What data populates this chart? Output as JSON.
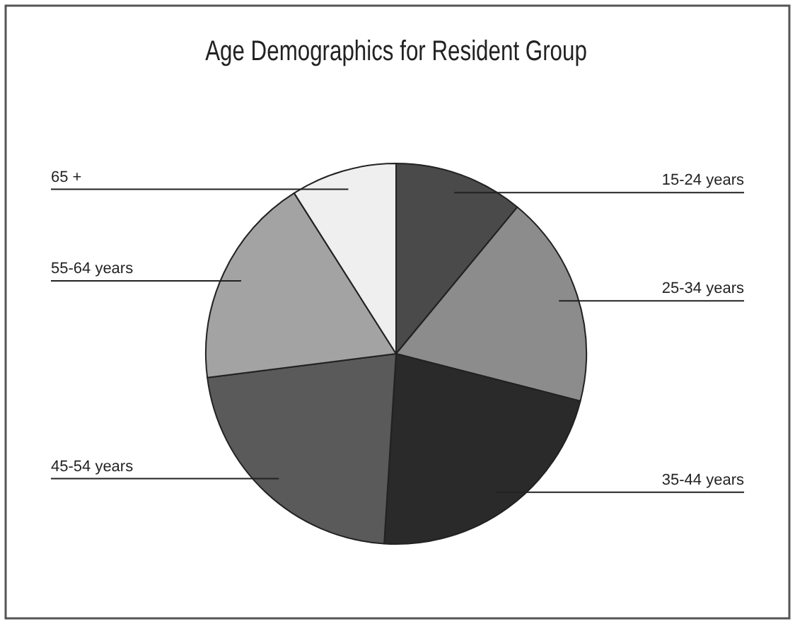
{
  "chart_data": {
    "type": "pie",
    "title": "Age Demographics for Resident Group",
    "categories": [
      "15-24 years",
      "25-34 years",
      "35-44 years",
      "45-54 years",
      "55-64 years",
      "65 +"
    ],
    "values": [
      11,
      18,
      22,
      22,
      18,
      9
    ],
    "colors": [
      "#4a4a4a",
      "#8c8c8c",
      "#2a2a2a",
      "#5a5a5a",
      "#a3a3a3",
      "#efefef"
    ]
  }
}
